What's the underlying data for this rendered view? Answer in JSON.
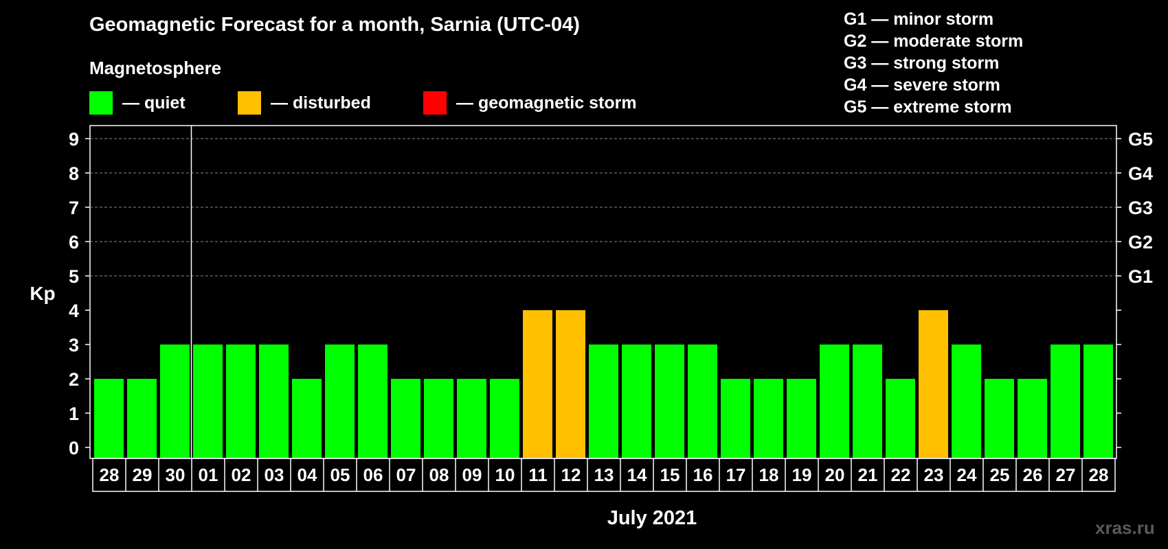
{
  "title": "Geomagnetic Forecast for a month, Sarnia (UTC-04)",
  "legend": {
    "heading": "Magnetosphere",
    "items": [
      {
        "label": "— quiet",
        "color": "#00ff00"
      },
      {
        "label": "— disturbed",
        "color": "#ffc000"
      },
      {
        "label": "— geomagnetic storm",
        "color": "#ff0000"
      }
    ]
  },
  "storm_scale": [
    "G1 — minor storm",
    "G2 — moderate storm",
    "G3 — strong storm",
    "G4 — severe storm",
    "G5 — extreme storm"
  ],
  "watermark": "xras.ru",
  "chart_data": {
    "type": "bar",
    "title": "Geomagnetic Forecast for a month, Sarnia (UTC-04)",
    "ylabel": "Kp",
    "xlabel": "July 2021",
    "ylim": [
      0,
      9
    ],
    "yticks": [
      "0",
      "1",
      "2",
      "3",
      "4",
      "5",
      "6",
      "7",
      "8",
      "9"
    ],
    "right_ticks": [
      {
        "value": 5,
        "label": "G1"
      },
      {
        "value": 6,
        "label": "G2"
      },
      {
        "value": 7,
        "label": "G3"
      },
      {
        "value": 8,
        "label": "G4"
      },
      {
        "value": 9,
        "label": "G5"
      }
    ],
    "grid": "dashed horizontal at Kp 5-9",
    "month_divider_after": "30",
    "categories": [
      "28",
      "29",
      "30",
      "01",
      "02",
      "03",
      "04",
      "05",
      "06",
      "07",
      "08",
      "09",
      "10",
      "11",
      "12",
      "13",
      "14",
      "15",
      "16",
      "17",
      "18",
      "19",
      "20",
      "21",
      "22",
      "23",
      "24",
      "25",
      "26",
      "27",
      "28"
    ],
    "values": [
      2,
      2,
      3,
      3,
      3,
      3,
      2,
      3,
      3,
      2,
      2,
      2,
      2,
      4,
      4,
      3,
      3,
      3,
      3,
      2,
      2,
      2,
      3,
      3,
      2,
      4,
      3,
      2,
      2,
      3,
      3
    ],
    "status": [
      "quiet",
      "quiet",
      "quiet",
      "quiet",
      "quiet",
      "quiet",
      "quiet",
      "quiet",
      "quiet",
      "quiet",
      "quiet",
      "quiet",
      "quiet",
      "disturbed",
      "disturbed",
      "quiet",
      "quiet",
      "quiet",
      "quiet",
      "quiet",
      "quiet",
      "quiet",
      "quiet",
      "quiet",
      "quiet",
      "disturbed",
      "quiet",
      "quiet",
      "quiet",
      "quiet",
      "quiet"
    ],
    "colors": {
      "quiet": "#00ff00",
      "disturbed": "#ffc000",
      "storm": "#ff0000"
    }
  }
}
